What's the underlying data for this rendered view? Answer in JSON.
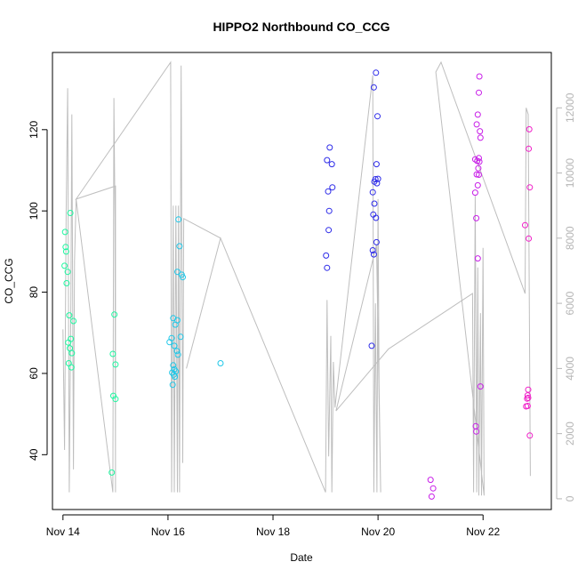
{
  "chart_data": {
    "type": "scatter",
    "title": "HIPPO2 Northbound CO_CCG",
    "xlabel": "Date",
    "ylabel": "CO_CCG",
    "x_ticks": [
      {
        "label": "Nov 14",
        "value": 14
      },
      {
        "label": "Nov 16",
        "value": 16
      },
      {
        "label": "Nov 18",
        "value": 18
      },
      {
        "label": "Nov 20",
        "value": 20
      },
      {
        "label": "Nov 22",
        "value": 22
      }
    ],
    "y_ticks": [
      40,
      60,
      80,
      100,
      120
    ],
    "y2_ticks": [
      0,
      2000,
      4000,
      6000,
      8000,
      10000,
      12000
    ],
    "xlim": [
      13.8,
      23.3
    ],
    "ylim": [
      26.5,
      139
    ],
    "y2lim": [
      -330,
      13700
    ],
    "colors": {
      "axes": "#000000",
      "altitude_line": "#bebebe",
      "right_axis": "#b5b5b5"
    },
    "altitude_series": [
      [
        14.0,
        5200
      ],
      [
        14.03,
        1500
      ],
      [
        14.06,
        8800
      ],
      [
        14.09,
        12600
      ],
      [
        14.12,
        200
      ],
      [
        14.15,
        6000
      ],
      [
        14.17,
        11800
      ],
      [
        14.2,
        900
      ],
      [
        14.22,
        7300
      ],
      [
        14.25,
        9200
      ],
      [
        14.95,
        200
      ],
      [
        14.97,
        12300
      ],
      [
        14.99,
        8600
      ],
      [
        15.0,
        200
      ],
      [
        15.0,
        9600
      ],
      [
        14.25,
        9200
      ],
      [
        16.05,
        13400
      ],
      [
        16.07,
        200
      ],
      [
        16.1,
        9000
      ],
      [
        16.12,
        200
      ],
      [
        16.15,
        9000
      ],
      [
        16.18,
        200
      ],
      [
        16.2,
        9000
      ],
      [
        16.22,
        200
      ],
      [
        16.25,
        13300
      ],
      [
        16.28,
        1100
      ],
      [
        16.3,
        8600
      ],
      [
        17.0,
        8000
      ],
      [
        16.35,
        4000
      ],
      [
        17.0,
        8000
      ],
      [
        19.0,
        200
      ],
      [
        19.03,
        6100
      ],
      [
        19.06,
        1300
      ],
      [
        19.1,
        5000
      ],
      [
        19.12,
        200
      ],
      [
        19.15,
        4200
      ],
      [
        19.18,
        2800
      ],
      [
        19.9,
        13000
      ],
      [
        19.92,
        200
      ],
      [
        19.95,
        6000
      ],
      [
        19.98,
        200
      ],
      [
        20.0,
        9200
      ],
      [
        20.02,
        3500
      ],
      [
        20.05,
        200
      ],
      [
        19.97,
        7800
      ],
      [
        19.2,
        2700
      ],
      [
        20.2,
        4600
      ],
      [
        21.8,
        6300
      ],
      [
        21.82,
        200
      ],
      [
        21.85,
        9300
      ],
      [
        21.88,
        200
      ],
      [
        21.9,
        7100
      ],
      [
        21.92,
        100
      ],
      [
        21.95,
        5700
      ],
      [
        21.97,
        100
      ],
      [
        22.0,
        7700
      ],
      [
        22.02,
        100
      ],
      [
        21.1,
        13100
      ],
      [
        21.2,
        13400
      ],
      [
        22.8,
        6300
      ],
      [
        22.82,
        12000
      ],
      [
        22.86,
        11800
      ],
      [
        22.9,
        700
      ]
    ],
    "points": [
      {
        "x": 14.04,
        "y": 94.8,
        "c": "#1ef7a0"
      },
      {
        "x": 14.05,
        "y": 91.1,
        "c": "#1ef7a0"
      },
      {
        "x": 14.06,
        "y": 90.0,
        "c": "#1ef7a0"
      },
      {
        "x": 14.03,
        "y": 86.5,
        "c": "#1ef7a0"
      },
      {
        "x": 14.09,
        "y": 85.0,
        "c": "#1ef7a0"
      },
      {
        "x": 14.07,
        "y": 82.2,
        "c": "#1ef7a0"
      },
      {
        "x": 14.14,
        "y": 99.5,
        "c": "#1ef7a0"
      },
      {
        "x": 14.12,
        "y": 74.3,
        "c": "#1ef7a0"
      },
      {
        "x": 14.2,
        "y": 72.9,
        "c": "#1ef7a0"
      },
      {
        "x": 14.1,
        "y": 67.6,
        "c": "#1ef7a0"
      },
      {
        "x": 14.15,
        "y": 68.5,
        "c": "#1ef7a0"
      },
      {
        "x": 14.13,
        "y": 66.2,
        "c": "#1ef7a0"
      },
      {
        "x": 14.17,
        "y": 65.0,
        "c": "#1ef7a0"
      },
      {
        "x": 14.11,
        "y": 62.5,
        "c": "#1ef7a0"
      },
      {
        "x": 14.16,
        "y": 61.5,
        "c": "#1ef7a0"
      },
      {
        "x": 14.95,
        "y": 64.8,
        "c": "#1ef7a0"
      },
      {
        "x": 14.98,
        "y": 74.5,
        "c": "#1ef7a0"
      },
      {
        "x": 15.0,
        "y": 62.2,
        "c": "#1ef7a0"
      },
      {
        "x": 14.96,
        "y": 54.5,
        "c": "#1ef7a0"
      },
      {
        "x": 15.0,
        "y": 53.7,
        "c": "#1ef7a0"
      },
      {
        "x": 14.93,
        "y": 35.6,
        "c": "#1ef7a0"
      },
      {
        "x": 16.03,
        "y": 67.7,
        "c": "#1fc7e8"
      },
      {
        "x": 16.07,
        "y": 68.7,
        "c": "#1fc7e8"
      },
      {
        "x": 16.1,
        "y": 73.6,
        "c": "#1fc7e8"
      },
      {
        "x": 16.14,
        "y": 72.0,
        "c": "#1fc7e8"
      },
      {
        "x": 16.18,
        "y": 73.1,
        "c": "#1fc7e8"
      },
      {
        "x": 16.2,
        "y": 97.9,
        "c": "#1fc7e8"
      },
      {
        "x": 16.22,
        "y": 91.3,
        "c": "#1fc7e8"
      },
      {
        "x": 16.18,
        "y": 85.0,
        "c": "#1fc7e8"
      },
      {
        "x": 16.26,
        "y": 84.3,
        "c": "#1fc7e8"
      },
      {
        "x": 16.28,
        "y": 83.7,
        "c": "#1fc7e8"
      },
      {
        "x": 16.24,
        "y": 69.0,
        "c": "#1fc7e8"
      },
      {
        "x": 16.12,
        "y": 66.8,
        "c": "#1fc7e8"
      },
      {
        "x": 16.17,
        "y": 65.5,
        "c": "#1fc7e8"
      },
      {
        "x": 16.19,
        "y": 64.6,
        "c": "#1fc7e8"
      },
      {
        "x": 16.1,
        "y": 62.0,
        "c": "#1fc7e8"
      },
      {
        "x": 16.12,
        "y": 61.0,
        "c": "#1fc7e8"
      },
      {
        "x": 16.08,
        "y": 60.2,
        "c": "#1fc7e8"
      },
      {
        "x": 16.11,
        "y": 59.7,
        "c": "#1fc7e8"
      },
      {
        "x": 16.13,
        "y": 59.2,
        "c": "#1fc7e8"
      },
      {
        "x": 16.15,
        "y": 60.5,
        "c": "#1fc7e8"
      },
      {
        "x": 16.09,
        "y": 57.2,
        "c": "#1fc7e8"
      },
      {
        "x": 17.0,
        "y": 62.5,
        "c": "#1fc7e8"
      },
      {
        "x": 19.03,
        "y": 112.5,
        "c": "#2d2be8"
      },
      {
        "x": 19.08,
        "y": 115.6,
        "c": "#2d2be8"
      },
      {
        "x": 19.12,
        "y": 111.5,
        "c": "#2d2be8"
      },
      {
        "x": 19.05,
        "y": 104.8,
        "c": "#2d2be8"
      },
      {
        "x": 19.13,
        "y": 105.8,
        "c": "#2d2be8"
      },
      {
        "x": 19.07,
        "y": 100.0,
        "c": "#2d2be8"
      },
      {
        "x": 19.06,
        "y": 95.3,
        "c": "#2d2be8"
      },
      {
        "x": 19.01,
        "y": 89.0,
        "c": "#2d2be8"
      },
      {
        "x": 19.03,
        "y": 86.0,
        "c": "#2d2be8"
      },
      {
        "x": 19.92,
        "y": 130.4,
        "c": "#2d2be8"
      },
      {
        "x": 19.96,
        "y": 134.0,
        "c": "#2d2be8"
      },
      {
        "x": 19.99,
        "y": 123.3,
        "c": "#2d2be8"
      },
      {
        "x": 19.97,
        "y": 111.5,
        "c": "#2d2be8"
      },
      {
        "x": 19.93,
        "y": 107.2,
        "c": "#2d2be8"
      },
      {
        "x": 19.95,
        "y": 107.8,
        "c": "#2d2be8"
      },
      {
        "x": 19.98,
        "y": 106.8,
        "c": "#2d2be8"
      },
      {
        "x": 20.0,
        "y": 107.9,
        "c": "#2d2be8"
      },
      {
        "x": 19.9,
        "y": 104.6,
        "c": "#2d2be8"
      },
      {
        "x": 19.93,
        "y": 101.8,
        "c": "#2d2be8"
      },
      {
        "x": 19.91,
        "y": 99.1,
        "c": "#2d2be8"
      },
      {
        "x": 19.96,
        "y": 98.3,
        "c": "#2d2be8"
      },
      {
        "x": 19.97,
        "y": 92.3,
        "c": "#2d2be8"
      },
      {
        "x": 19.9,
        "y": 90.3,
        "c": "#2d2be8"
      },
      {
        "x": 19.92,
        "y": 89.3,
        "c": "#2d2be8"
      },
      {
        "x": 19.88,
        "y": 66.8,
        "c": "#2d2be8"
      },
      {
        "x": 21.0,
        "y": 33.8,
        "c": "#c81ee8"
      },
      {
        "x": 21.05,
        "y": 31.7,
        "c": "#c81ee8"
      },
      {
        "x": 21.02,
        "y": 29.7,
        "c": "#c81ee8"
      },
      {
        "x": 21.85,
        "y": 112.7,
        "c": "#c81ee8"
      },
      {
        "x": 21.9,
        "y": 123.7,
        "c": "#c81ee8"
      },
      {
        "x": 21.88,
        "y": 121.3,
        "c": "#c81ee8"
      },
      {
        "x": 21.93,
        "y": 133.1,
        "c": "#c81ee8"
      },
      {
        "x": 21.92,
        "y": 129.1,
        "c": "#c81ee8"
      },
      {
        "x": 21.94,
        "y": 119.6,
        "c": "#c81ee8"
      },
      {
        "x": 21.95,
        "y": 118.0,
        "c": "#c81ee8"
      },
      {
        "x": 21.92,
        "y": 113.0,
        "c": "#c81ee8"
      },
      {
        "x": 21.89,
        "y": 112.3,
        "c": "#c81ee8"
      },
      {
        "x": 21.93,
        "y": 112.1,
        "c": "#c81ee8"
      },
      {
        "x": 21.91,
        "y": 110.5,
        "c": "#c81ee8"
      },
      {
        "x": 21.88,
        "y": 109.0,
        "c": "#c81ee8"
      },
      {
        "x": 21.92,
        "y": 108.9,
        "c": "#c81ee8"
      },
      {
        "x": 21.9,
        "y": 106.3,
        "c": "#c81ee8"
      },
      {
        "x": 21.85,
        "y": 104.5,
        "c": "#c81ee8"
      },
      {
        "x": 21.87,
        "y": 98.2,
        "c": "#c81ee8"
      },
      {
        "x": 21.9,
        "y": 88.3,
        "c": "#c81ee8"
      },
      {
        "x": 21.95,
        "y": 56.8,
        "c": "#c81ee8"
      },
      {
        "x": 21.86,
        "y": 47.0,
        "c": "#c81ee8"
      },
      {
        "x": 21.87,
        "y": 45.7,
        "c": "#c81ee8"
      },
      {
        "x": 22.88,
        "y": 120.1,
        "c": "#f01ec8"
      },
      {
        "x": 22.87,
        "y": 115.3,
        "c": "#f01ec8"
      },
      {
        "x": 22.89,
        "y": 105.8,
        "c": "#f01ec8"
      },
      {
        "x": 22.8,
        "y": 96.5,
        "c": "#f01ec8"
      },
      {
        "x": 22.87,
        "y": 93.2,
        "c": "#f01ec8"
      },
      {
        "x": 22.86,
        "y": 56.0,
        "c": "#f01ec8"
      },
      {
        "x": 22.85,
        "y": 54.6,
        "c": "#f01ec8"
      },
      {
        "x": 22.86,
        "y": 54.0,
        "c": "#f01ec8"
      },
      {
        "x": 22.84,
        "y": 53.8,
        "c": "#f01ec8"
      },
      {
        "x": 22.82,
        "y": 51.9,
        "c": "#f01ec8"
      },
      {
        "x": 22.85,
        "y": 52.0,
        "c": "#f01ec8"
      },
      {
        "x": 22.89,
        "y": 44.7,
        "c": "#f01ec8"
      }
    ]
  }
}
